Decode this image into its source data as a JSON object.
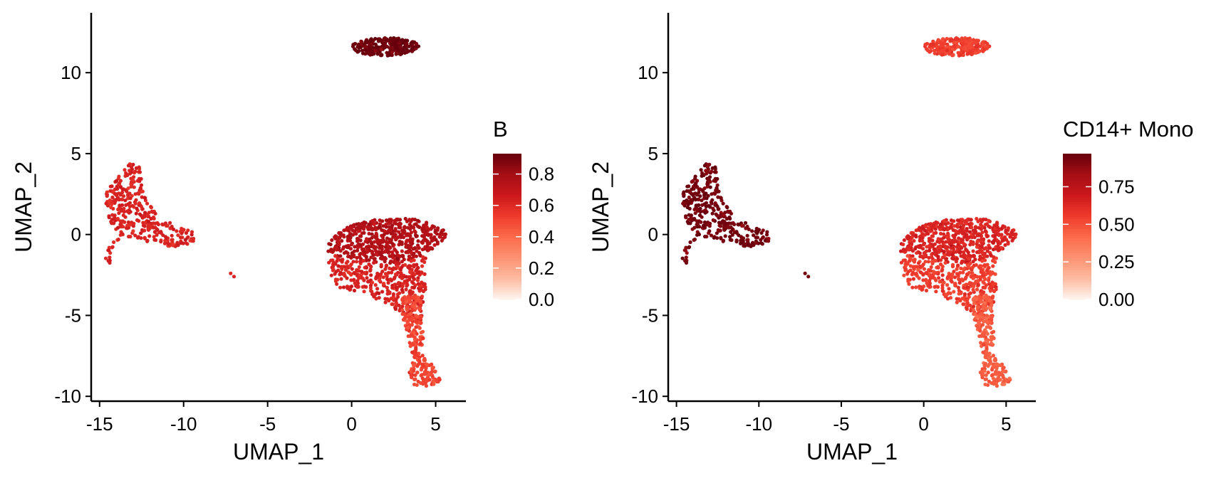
{
  "chart_data": [
    {
      "type": "scatter",
      "xlabel": "UMAP_1",
      "ylabel": "UMAP_2",
      "xlim": [
        -15.5,
        6.8
      ],
      "ylim": [
        -10.3,
        13.7
      ],
      "xticks": [
        -15,
        -10,
        -5,
        0,
        5
      ],
      "xtick_labels": [
        "-15",
        "-10",
        "-5",
        "0",
        "5"
      ],
      "yticks": [
        -10,
        -5,
        0,
        5,
        10
      ],
      "ytick_labels": [
        "-10",
        "-5",
        "0",
        "5",
        "10"
      ],
      "grid": false,
      "legend": {
        "title": "B",
        "placement": "right",
        "range": [
          0,
          0.93
        ],
        "ticks": [
          0.0,
          0.2,
          0.4,
          0.6,
          0.8
        ],
        "tick_labels": [
          "0.0",
          "0.2",
          "0.4",
          "0.6",
          "0.8"
        ]
      },
      "clusters": [
        {
          "name": "top",
          "value": 0.92
        },
        {
          "name": "left",
          "value": 0.62
        },
        {
          "name": "right-upper",
          "value": 0.75
        },
        {
          "name": "right-middle",
          "value": 0.62
        },
        {
          "name": "right-lower",
          "value": 0.5
        },
        {
          "name": "stray",
          "value": 0.62
        }
      ]
    },
    {
      "type": "scatter",
      "xlabel": "UMAP_1",
      "ylabel": "UMAP_2",
      "xlim": [
        -15.5,
        6.8
      ],
      "ylim": [
        -10.3,
        13.7
      ],
      "xticks": [
        -15,
        -10,
        -5,
        0,
        5
      ],
      "xtick_labels": [
        "-15",
        "-10",
        "-5",
        "0",
        "5"
      ],
      "yticks": [
        -10,
        -5,
        0,
        5,
        10
      ],
      "ytick_labels": [
        "-10",
        "-5",
        "0",
        "5",
        "10"
      ],
      "grid": false,
      "legend": {
        "title": "CD14+ Mono",
        "placement": "right",
        "range": [
          0,
          0.97
        ],
        "ticks": [
          0.0,
          0.25,
          0.5,
          0.75
        ],
        "tick_labels": [
          "0.00",
          "0.25",
          "0.50",
          "0.75"
        ]
      },
      "clusters": [
        {
          "name": "top",
          "value": 0.55
        },
        {
          "name": "left",
          "value": 0.94
        },
        {
          "name": "right-upper",
          "value": 0.64
        },
        {
          "name": "right-middle",
          "value": 0.55
        },
        {
          "name": "right-lower",
          "value": 0.45
        },
        {
          "name": "stray",
          "value": 0.9
        }
      ]
    }
  ],
  "colors": {
    "scale": [
      "#fff5f0",
      "#fcbba1",
      "#fc9272",
      "#fb6a4a",
      "#ef3b2c",
      "#cb181d",
      "#a50f15",
      "#67000d"
    ],
    "axis": "#000000"
  }
}
